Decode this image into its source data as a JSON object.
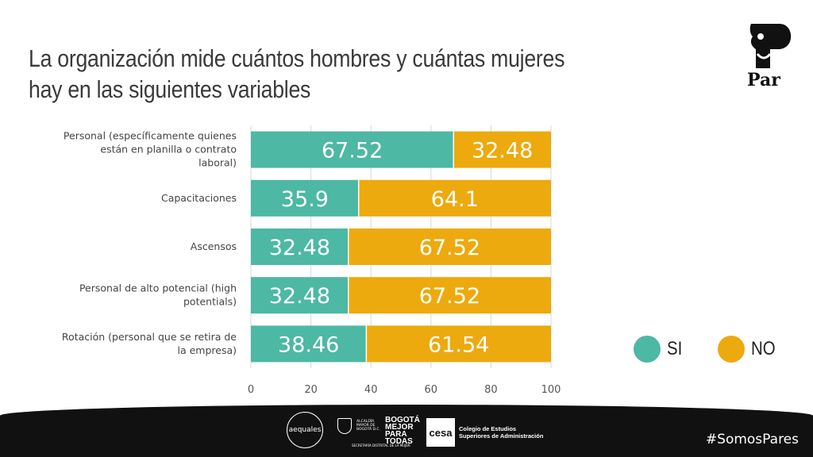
{
  "title": "La organización mide cuántos hombres y cuántas mujeres hay en las siguientes variables",
  "logo": {
    "text": "Par",
    "icon": "par-logo-icon"
  },
  "colors": {
    "si": "#4db8a4",
    "no": "#edaa0e",
    "grid": "#d9d9d9"
  },
  "legend": {
    "si_label": "SI",
    "no_label": "NO"
  },
  "chart_data": {
    "type": "bar",
    "orientation": "horizontal",
    "stacked": true,
    "title": "La organización mide cuántos hombres y cuántas mujeres hay en las siguientes variables",
    "categories": [
      "Personal (específicamente quienes están en planilla o contrato laboral)",
      "Capacitaciones",
      "Ascensos",
      "Personal de alto potencial (high potentials)",
      "Rotación (personal que se retira de la empresa)"
    ],
    "category_lines": [
      [
        "Personal (específicamente quienes",
        "están en planilla o contrato",
        "laboral)"
      ],
      [
        "Capacitaciones"
      ],
      [
        "Ascensos"
      ],
      [
        "Personal de alto potencial (high",
        "potentials)"
      ],
      [
        "Rotación (personal que se retira de",
        "la empresa)"
      ]
    ],
    "series": [
      {
        "name": "SI",
        "values": [
          67.52,
          35.9,
          32.48,
          32.48,
          38.46
        ]
      },
      {
        "name": "NO",
        "values": [
          32.48,
          64.1,
          67.52,
          67.52,
          61.54
        ]
      }
    ],
    "xlim": [
      0,
      100
    ],
    "xticks": [
      0,
      20,
      40,
      60,
      80,
      100
    ],
    "grid": true,
    "legend_position": "right"
  },
  "footer": {
    "hashtag": "#SomosPares",
    "sponsors": [
      {
        "name": "aequales"
      },
      {
        "line1": "ALCALDÍA MAYOR DE BOGOTÁ D.C.",
        "brand": "BOGOTÁ MEJOR PARA TODAS",
        "sub": "SECRETARÍA DISTRITAL DE LA MUJER"
      },
      {
        "mark": "cesa",
        "line1": "Colegio de Estudios",
        "line2": "Superiores de Administración"
      }
    ]
  }
}
